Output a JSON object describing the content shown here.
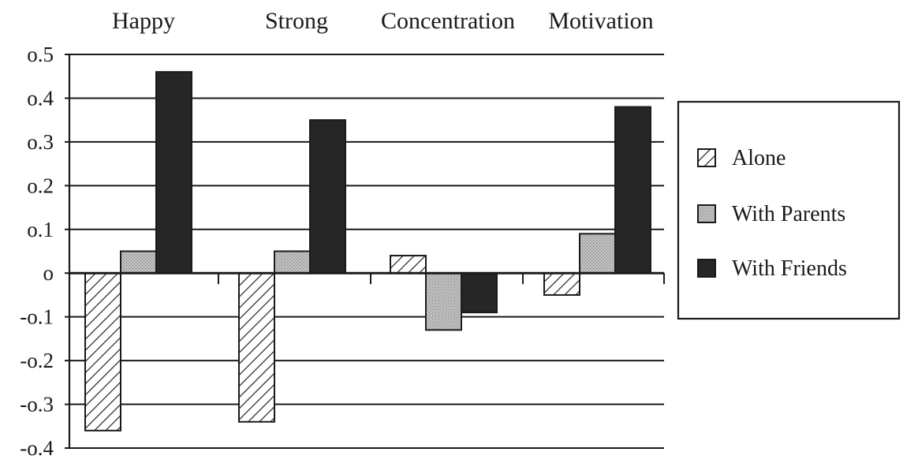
{
  "chart_data": {
    "type": "bar",
    "categories": [
      "Happy",
      "Strong",
      "Concentration",
      "Motivation"
    ],
    "series": [
      {
        "name": "Alone",
        "values": [
          -0.36,
          -0.34,
          0.04,
          -0.05
        ]
      },
      {
        "name": "With Parents",
        "values": [
          0.05,
          0.05,
          -0.13,
          0.09
        ]
      },
      {
        "name": "With Friends",
        "values": [
          0.46,
          0.35,
          -0.09,
          0.38
        ]
      }
    ],
    "ylim": [
      -0.4,
      0.5
    ],
    "y_ticks": [
      0.5,
      0.4,
      0.3,
      0.2,
      0.1,
      0,
      -0.1,
      -0.2,
      -0.3,
      -0.4
    ],
    "y_tick_labels": [
      "o.5",
      "o.4",
      "o.3",
      "o.2",
      "o.1",
      "o",
      "-o.1",
      "-o.2",
      "-o.3",
      "-o.4"
    ],
    "grid": true,
    "legend_position": "right",
    "category_axis_position": "top",
    "series_styles": {
      "Alone": {
        "fill": "hatch",
        "color": "#ffffff"
      },
      "With Parents": {
        "fill": "stipple",
        "color": "#b8b8b8"
      },
      "With Friends": {
        "fill": "solid",
        "color": "#262626"
      }
    }
  }
}
